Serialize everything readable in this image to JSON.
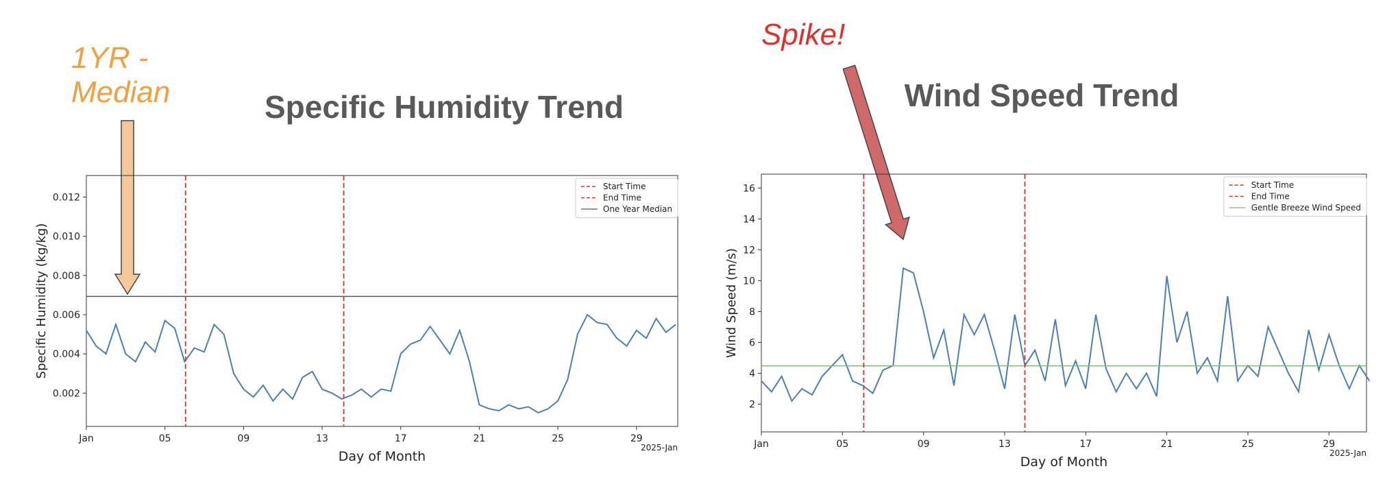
{
  "chart_data": [
    {
      "type": "line",
      "title": "Specific Humidity Trend",
      "annotation": "1YR - Median",
      "annotation_color": "#f0a040",
      "x_label": "Day of Month",
      "y_label": "Specific Humidity (kg/kg)",
      "x_corner_label": "2025-Jan",
      "x": [
        1,
        1.5,
        2,
        2.5,
        3,
        3.5,
        4,
        4.5,
        5,
        5.5,
        6,
        6.5,
        7,
        7.5,
        8,
        8.5,
        9,
        9.5,
        10,
        10.5,
        11,
        11.5,
        12,
        12.5,
        13,
        13.5,
        14,
        14.5,
        15,
        15.5,
        16,
        16.5,
        17,
        17.5,
        18,
        18.5,
        19,
        19.5,
        20,
        20.5,
        21,
        21.5,
        22,
        22.5,
        23,
        23.5,
        24,
        24.5,
        25,
        25.5,
        26,
        26.5,
        27,
        27.5,
        28,
        28.5,
        29,
        29.5,
        30,
        30.5,
        31
      ],
      "values": [
        0.0052,
        0.0044,
        0.004,
        0.0055,
        0.004,
        0.0036,
        0.0046,
        0.0041,
        0.0057,
        0.0053,
        0.0036,
        0.0043,
        0.0041,
        0.0055,
        0.005,
        0.003,
        0.0022,
        0.0018,
        0.0024,
        0.0016,
        0.0022,
        0.0017,
        0.0028,
        0.0031,
        0.0022,
        0.002,
        0.0017,
        0.0019,
        0.0022,
        0.0018,
        0.0022,
        0.0021,
        0.004,
        0.0045,
        0.0047,
        0.0054,
        0.0047,
        0.004,
        0.0052,
        0.0036,
        0.0014,
        0.0012,
        0.0011,
        0.0014,
        0.0012,
        0.0013,
        0.001,
        0.0012,
        0.0016,
        0.0027,
        0.005,
        0.006,
        0.0056,
        0.0055,
        0.0048,
        0.0044,
        0.0052,
        0.0048,
        0.0058,
        0.0051,
        0.0055
      ],
      "color": "#4a7fb5",
      "vlines": [
        {
          "name": "Start Time",
          "value": 6.05,
          "color": "#e03020"
        },
        {
          "name": "End Time",
          "value": 14.1,
          "color": "#e03020"
        }
      ],
      "hlines": [
        {
          "name": "One Year Median",
          "value": 0.00693,
          "color": "#555555"
        }
      ],
      "xlim": [
        1,
        31.1
      ],
      "xticks": [
        {
          "value": 1,
          "label": "Jan"
        },
        {
          "value": 5,
          "label": "05"
        },
        {
          "value": 9,
          "label": "09"
        },
        13,
        17,
        21,
        25,
        29
      ],
      "ylim": [
        0.0003,
        0.0131
      ],
      "yticks": [
        0.002,
        0.004,
        0.006,
        0.008,
        {
          "value": 0.01,
          "label": "0.010"
        },
        0.012
      ]
    },
    {
      "type": "line",
      "title": "Wind Speed Trend",
      "annotation": "Spike!",
      "annotation_color": "#e0302a",
      "x_label": "Day of Month",
      "y_label": "Wind Speed (m/s)",
      "x_corner_label": "2025-Jan",
      "x": [
        1,
        1.5,
        2,
        2.5,
        3,
        3.5,
        4,
        4.5,
        5,
        5.5,
        6,
        6.5,
        7,
        7.5,
        8,
        8.5,
        9,
        9.5,
        10,
        10.5,
        11,
        11.5,
        12,
        12.5,
        13,
        13.5,
        14,
        14.5,
        15,
        15.5,
        16,
        16.5,
        17,
        17.5,
        18,
        18.5,
        19,
        19.5,
        20,
        20.5,
        21,
        21.5,
        22,
        22.5,
        23,
        23.5,
        24,
        24.5,
        25,
        25.5,
        26,
        26.5,
        27,
        27.5,
        28,
        28.5,
        29,
        29.5,
        30,
        30.5,
        31
      ],
      "values": [
        3.5,
        2.8,
        3.8,
        2.2,
        3.0,
        2.6,
        3.8,
        4.5,
        5.2,
        3.5,
        3.2,
        2.7,
        4.2,
        4.5,
        10.8,
        10.5,
        8.0,
        5.0,
        6.8,
        3.2,
        7.8,
        6.5,
        7.8,
        5.5,
        3.0,
        7.8,
        4.5,
        5.5,
        3.5,
        7.5,
        3.2,
        4.8,
        3.0,
        7.8,
        4.3,
        2.8,
        4.0,
        3.0,
        4.0,
        2.5,
        10.3,
        6.0,
        8.0,
        4.0,
        5.0,
        3.5,
        9.0,
        3.5,
        4.5,
        3.8,
        7.0,
        5.5,
        4.0,
        2.8,
        6.8,
        4.2,
        6.5,
        4.5,
        3.0,
        4.5,
        3.5
      ],
      "color": "#4a7fb5",
      "vlines": [
        {
          "name": "Start Time",
          "value": 6.05,
          "color": "#e03020"
        },
        {
          "name": "End Time",
          "value": 14.0,
          "color": "#e03020"
        }
      ],
      "hlines": [
        {
          "name": "Gentle Breeze Wind Speed",
          "value": 4.48,
          "color": "#7cbf6a"
        }
      ],
      "xlim": [
        1,
        30.85
      ],
      "xticks": [
        {
          "value": 1,
          "label": "Jan"
        },
        {
          "value": 5,
          "label": "05"
        },
        {
          "value": 9,
          "label": "09"
        },
        13,
        17,
        21,
        25,
        29
      ],
      "ylim": [
        0.2,
        16.9
      ],
      "yticks": [
        2,
        4,
        6,
        8,
        10,
        12,
        14,
        16
      ]
    }
  ]
}
